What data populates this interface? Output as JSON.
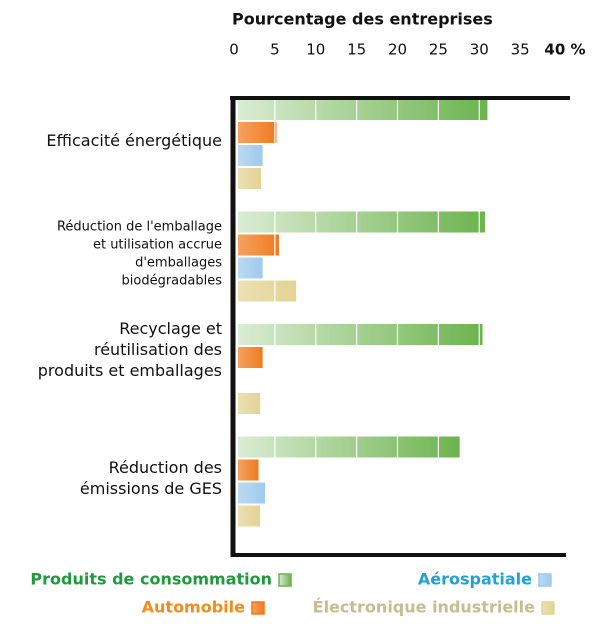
{
  "chart_data": {
    "type": "bar",
    "orientation": "horizontal",
    "title": "Pourcentage des entreprises",
    "categories": [
      "Efficacité énergétique",
      "Réduction de l'emballage\net utilisation accrue\nd'emballages\nbiodégradables",
      "Recyclage et\nréutilisation des\nproduits et emballages",
      "Réduction des\némissions de GES"
    ],
    "series": [
      {
        "name": "Produits de consommation",
        "color": "#6cb34e",
        "label_color": "#1f9a3c",
        "values": [
          31,
          30.7,
          30.4,
          27.6
        ]
      },
      {
        "name": "Automobile",
        "color": "#f07a1e",
        "label_color": "#f28c1c",
        "values": [
          5.2,
          5.5,
          3.5,
          3.0
        ]
      },
      {
        "name": "Aérospatiale",
        "color": "#9fcaec",
        "label_color": "#1ea2d8",
        "values": [
          3.5,
          3.5,
          null,
          3.8
        ]
      },
      {
        "name": "Électronique industrielle",
        "color": "#e4d394",
        "label_color": "#c9bc8e",
        "values": [
          3.3,
          7.6,
          3.2,
          3.2
        ]
      }
    ],
    "xlim": [
      0,
      40
    ],
    "xticks": [
      0,
      5,
      10,
      15,
      20,
      25,
      30,
      35,
      {
        "value": 40,
        "label": "40 %"
      }
    ],
    "grid": true
  }
}
